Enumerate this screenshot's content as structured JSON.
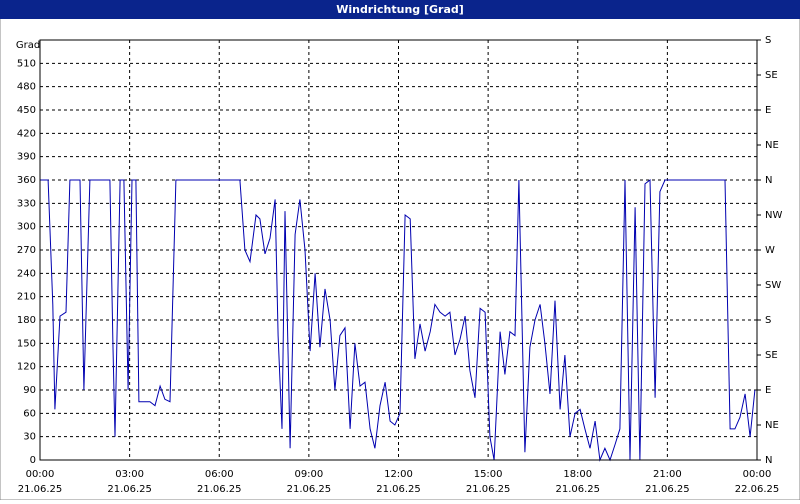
{
  "chart_data": {
    "type": "line",
    "title": "Windrichtung [Grad]",
    "y_label": "Grad",
    "xlim": [
      0,
      24
    ],
    "xticks": [
      {
        "value": 0,
        "label": "00:00"
      },
      {
        "value": 3,
        "label": "03:00"
      },
      {
        "value": 6,
        "label": "06:00"
      },
      {
        "value": 9,
        "label": "09:00"
      },
      {
        "value": 12,
        "label": "12:00"
      },
      {
        "value": 15,
        "label": "15:00"
      },
      {
        "value": 18,
        "label": "18:00"
      },
      {
        "value": 21,
        "label": "21:00"
      },
      {
        "value": 24,
        "label": "00:00"
      }
    ],
    "xtick_dates": [
      "21.06.25",
      "21.06.25",
      "21.06.25",
      "21.06.25",
      "21.06.25",
      "21.06.25",
      "21.06.25",
      "21.06.25",
      "22.06.25"
    ],
    "ylim": [
      0,
      540
    ],
    "yticks": [
      0,
      30,
      60,
      90,
      120,
      150,
      180,
      210,
      240,
      270,
      300,
      330,
      360,
      390,
      420,
      450,
      480,
      510
    ],
    "y2lim": [
      0,
      540
    ],
    "y2ticks": [
      {
        "value": 0,
        "label": "N"
      },
      {
        "value": 45,
        "label": "NE"
      },
      {
        "value": 90,
        "label": "E"
      },
      {
        "value": 135,
        "label": "SE"
      },
      {
        "value": 180,
        "label": "S"
      },
      {
        "value": 225,
        "label": "SW"
      },
      {
        "value": 270,
        "label": "W"
      },
      {
        "value": 315,
        "label": "NW"
      },
      {
        "value": 360,
        "label": "N"
      },
      {
        "value": 405,
        "label": "NE"
      },
      {
        "value": 450,
        "label": "E"
      },
      {
        "value": 495,
        "label": "SE"
      },
      {
        "value": 540,
        "label": "S"
      }
    ],
    "grid": true,
    "x": [
      0,
      0.27,
      0.43,
      0.5,
      0.67,
      0.87,
      1.0,
      1.34,
      1.47,
      1.67,
      2.34,
      2.44,
      2.51,
      2.68,
      2.81,
      2.95,
      3.08,
      3.21,
      3.31,
      3.68,
      3.85,
      4.02,
      4.18,
      4.35,
      4.55,
      5.36,
      6.69,
      6.86,
      7.03,
      7.23,
      7.36,
      7.53,
      7.7,
      7.87,
      7.97,
      8.1,
      8.2,
      8.37,
      8.54,
      8.7,
      8.87,
      9.04,
      9.21,
      9.37,
      9.54,
      9.71,
      9.87,
      10.04,
      10.21,
      10.38,
      10.54,
      10.71,
      10.88,
      11.05,
      11.21,
      11.38,
      11.55,
      11.72,
      11.88,
      12.05,
      12.22,
      12.39,
      12.55,
      12.72,
      12.89,
      13.06,
      13.22,
      13.39,
      13.56,
      13.72,
      13.89,
      14.06,
      14.23,
      14.39,
      14.56,
      14.73,
      14.9,
      15.06,
      15.2,
      15.4,
      15.56,
      15.73,
      15.9,
      16.03,
      16.23,
      16.4,
      16.57,
      16.74,
      16.9,
      17.07,
      17.24,
      17.41,
      17.57,
      17.74,
      17.91,
      18.08,
      18.24,
      18.41,
      18.58,
      18.74,
      18.91,
      19.08,
      19.25,
      19.41,
      19.58,
      19.75,
      19.92,
      20.08,
      20.25,
      20.42,
      20.59,
      20.75,
      20.92,
      21.42,
      22.93,
      23.1,
      23.26,
      23.43,
      23.6,
      23.77,
      23.93
    ],
    "series": [
      {
        "color": "#0000b0",
        "values": [
          360,
          360,
          200,
          65,
          185,
          190,
          360,
          360,
          90,
          360,
          360,
          150,
          30,
          360,
          360,
          90,
          360,
          360,
          75,
          75,
          70,
          95,
          78,
          75,
          360,
          360,
          360,
          270,
          255,
          315,
          310,
          265,
          285,
          335,
          160,
          40,
          320,
          15,
          290,
          335,
          270,
          140,
          240,
          145,
          220,
          180,
          90,
          160,
          170,
          40,
          150,
          95,
          100,
          40,
          15,
          70,
          100,
          50,
          45,
          60,
          315,
          310,
          130,
          175,
          140,
          165,
          200,
          190,
          185,
          190,
          135,
          155,
          185,
          115,
          80,
          195,
          190,
          30,
          0,
          165,
          110,
          165,
          160,
          360,
          10,
          145,
          180,
          200,
          150,
          85,
          205,
          65,
          135,
          30,
          60,
          65,
          40,
          15,
          50,
          0,
          15,
          0,
          20,
          40,
          360,
          0,
          325,
          0,
          355,
          360,
          80,
          345,
          360,
          360,
          360,
          40,
          40,
          55,
          85,
          30,
          90
        ]
      }
    ]
  }
}
